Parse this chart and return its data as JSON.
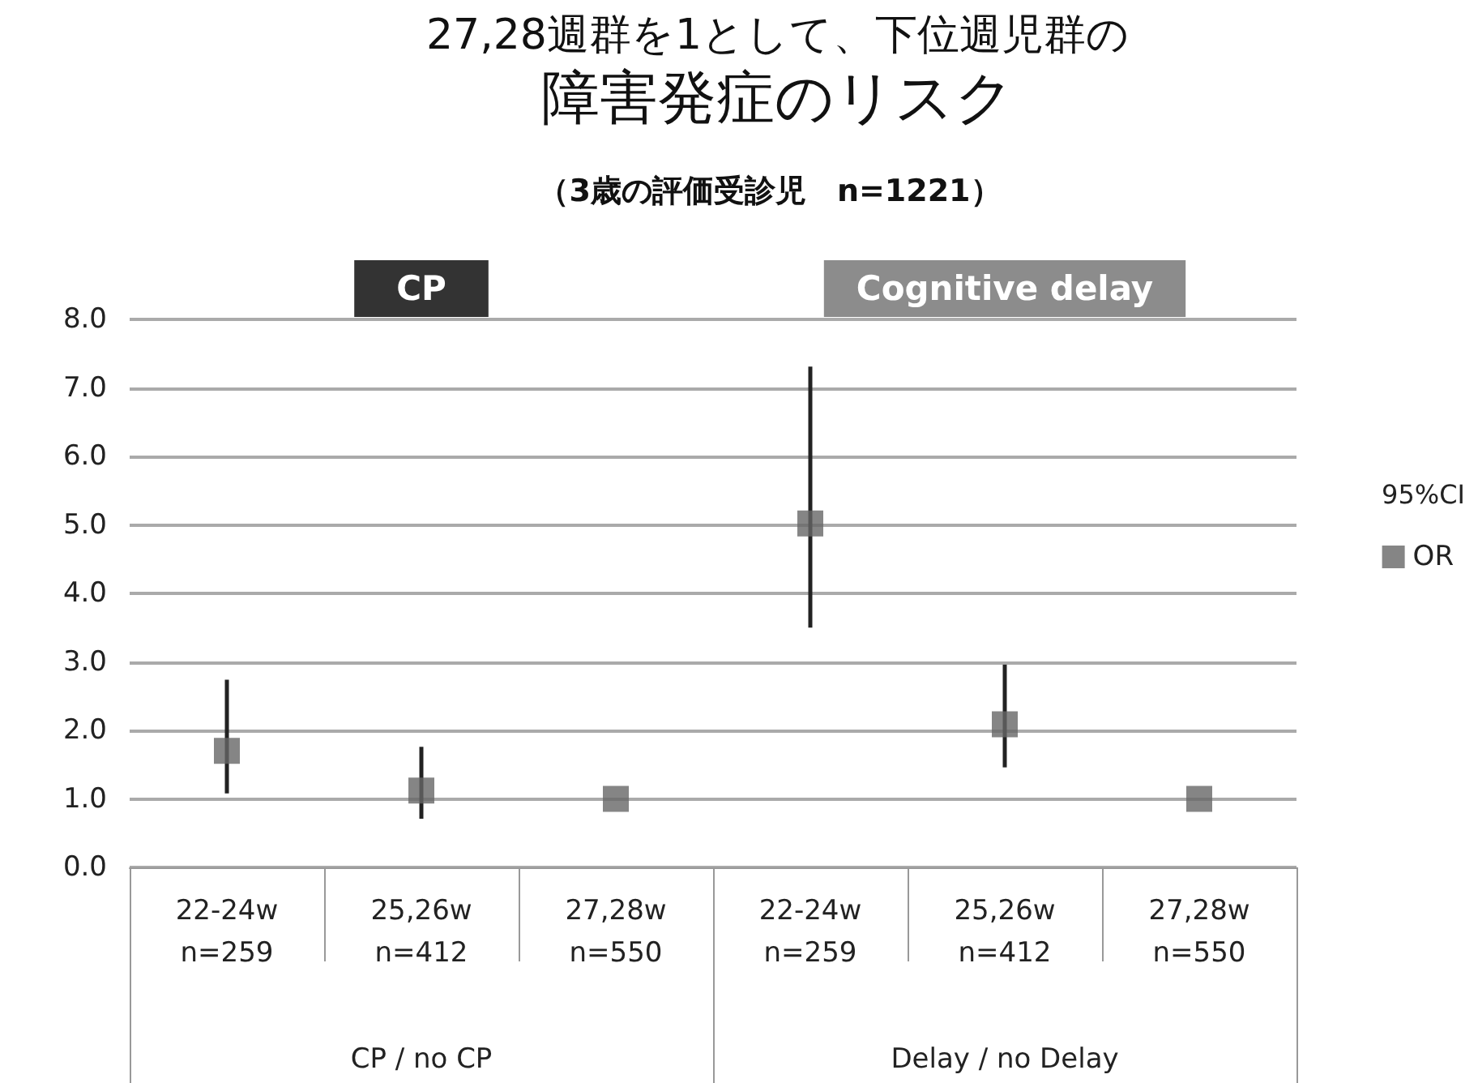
{
  "chart_data": {
    "type": "scatter",
    "title": "27,28週群を1として、下位週児群の",
    "subtitle": "障害発症のリスク",
    "categories": [
      "22-24w\nn=259",
      "25,26w\nn=412",
      "27,28w\nn=550",
      "22-24w\nn=259",
      "25,26w\nn=412",
      "27,28w\nn=550"
    ],
    "series": [
      {
        "name": "OR",
        "color": "#666666",
        "values": [
          1.7,
          1.12,
          1.0,
          5.02,
          2.09,
          1.0
        ],
        "errors": [
          [
            1.08,
            2.74
          ],
          [
            0.71,
            1.76
          ],
          null,
          [
            3.5,
            7.31
          ],
          [
            1.46,
            2.96
          ],
          null
        ]
      }
    ],
    "legend_title": "95%CI",
    "annotations": [
      "（3歳の評価受診児　n=1221）",
      "CP",
      "Cognitive delay",
      "CP / no CP",
      "Delay / no Delay"
    ],
    "ylim": [
      0,
      8
    ],
    "yticks": [
      {
        "value": 0,
        "label": "0.0"
      },
      {
        "value": 1,
        "label": "1.0"
      },
      {
        "value": 2,
        "label": "2.0"
      },
      {
        "value": 3,
        "label": "3.0"
      },
      {
        "value": 4,
        "label": "4.0"
      },
      {
        "value": 5,
        "label": "5.0"
      },
      {
        "value": 6,
        "label": "6.0"
      },
      {
        "value": 7,
        "label": "7.0"
      },
      {
        "value": 8,
        "label": "8.0"
      }
    ],
    "grid": "y",
    "legend": "right",
    "marker": "square"
  }
}
